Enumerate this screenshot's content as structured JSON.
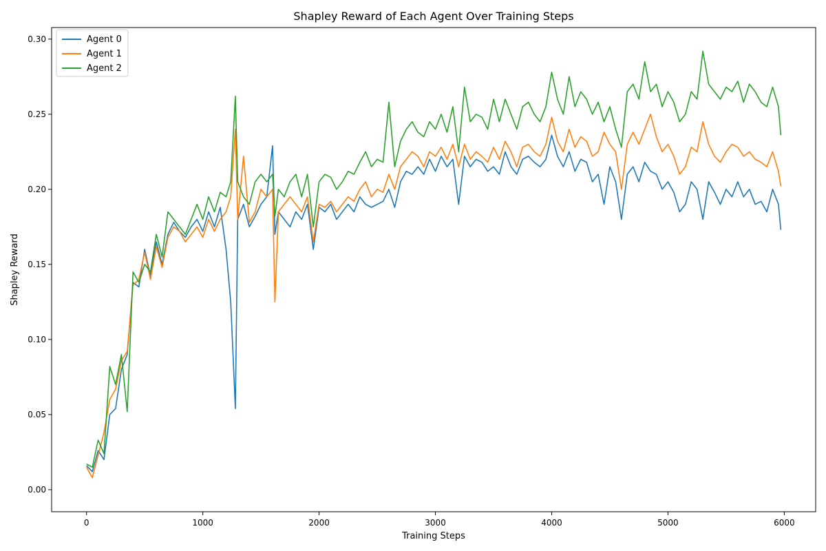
{
  "chart_data": {
    "type": "line",
    "title": "Shapley Reward of Each Agent Over Training Steps",
    "xlabel": "Training Steps",
    "ylabel": "Shapley Reward",
    "xlim": [
      -300,
      6270
    ],
    "ylim": [
      -0.0147,
      0.3077
    ],
    "xticks": [
      0,
      1000,
      2000,
      3000,
      4000,
      5000,
      6000
    ],
    "yticks": [
      0.0,
      0.05,
      0.1,
      0.15,
      0.2,
      0.25,
      0.3
    ],
    "ytick_labels": [
      "0.00",
      "0.05",
      "0.10",
      "0.15",
      "0.20",
      "0.25",
      "0.30"
    ],
    "grid": false,
    "legend": "top-left",
    "x": [
      0,
      50,
      100,
      150,
      200,
      250,
      300,
      350,
      400,
      450,
      500,
      550,
      600,
      650,
      700,
      750,
      800,
      850,
      900,
      950,
      1000,
      1050,
      1100,
      1150,
      1200,
      1240,
      1280,
      1300,
      1350,
      1400,
      1450,
      1500,
      1550,
      1600,
      1620,
      1650,
      1700,
      1750,
      1800,
      1850,
      1900,
      1950,
      2000,
      2050,
      2100,
      2150,
      2200,
      2250,
      2300,
      2350,
      2400,
      2450,
      2500,
      2550,
      2600,
      2650,
      2700,
      2750,
      2800,
      2850,
      2900,
      2950,
      3000,
      3050,
      3100,
      3150,
      3200,
      3250,
      3300,
      3350,
      3400,
      3450,
      3500,
      3550,
      3600,
      3650,
      3700,
      3750,
      3800,
      3850,
      3900,
      3950,
      4000,
      4050,
      4100,
      4150,
      4200,
      4250,
      4300,
      4350,
      4400,
      4450,
      4500,
      4550,
      4600,
      4650,
      4700,
      4750,
      4800,
      4850,
      4900,
      4950,
      5000,
      5050,
      5100,
      5150,
      5200,
      5250,
      5300,
      5350,
      5400,
      5450,
      5500,
      5550,
      5600,
      5650,
      5700,
      5750,
      5800,
      5850,
      5900,
      5950,
      5970
    ],
    "series": [
      {
        "name": "Agent 0",
        "color": "#1f77b4",
        "values": [
          0.016,
          0.012,
          0.026,
          0.02,
          0.05,
          0.054,
          0.08,
          0.09,
          0.138,
          0.135,
          0.16,
          0.142,
          0.165,
          0.15,
          0.17,
          0.178,
          0.172,
          0.168,
          0.175,
          0.18,
          0.172,
          0.185,
          0.175,
          0.188,
          0.16,
          0.125,
          0.054,
          0.18,
          0.19,
          0.175,
          0.182,
          0.19,
          0.195,
          0.229,
          0.17,
          0.185,
          0.18,
          0.175,
          0.185,
          0.18,
          0.19,
          0.16,
          0.188,
          0.185,
          0.19,
          0.18,
          0.185,
          0.19,
          0.185,
          0.195,
          0.19,
          0.188,
          0.19,
          0.192,
          0.2,
          0.188,
          0.205,
          0.212,
          0.21,
          0.215,
          0.21,
          0.22,
          0.212,
          0.222,
          0.215,
          0.22,
          0.19,
          0.222,
          0.215,
          0.22,
          0.218,
          0.212,
          0.215,
          0.21,
          0.225,
          0.215,
          0.21,
          0.22,
          0.222,
          0.218,
          0.215,
          0.22,
          0.236,
          0.222,
          0.215,
          0.225,
          0.212,
          0.22,
          0.218,
          0.205,
          0.21,
          0.19,
          0.215,
          0.205,
          0.18,
          0.21,
          0.215,
          0.205,
          0.218,
          0.212,
          0.21,
          0.2,
          0.205,
          0.198,
          0.185,
          0.19,
          0.205,
          0.2,
          0.18,
          0.205,
          0.198,
          0.19,
          0.2,
          0.195,
          0.205,
          0.195,
          0.2,
          0.19,
          0.192,
          0.185,
          0.2,
          0.19,
          0.173
        ]
      },
      {
        "name": "Agent 1",
        "color": "#ff7f0e",
        "values": [
          0.015,
          0.008,
          0.023,
          0.038,
          0.06,
          0.067,
          0.086,
          0.092,
          0.136,
          0.14,
          0.158,
          0.14,
          0.162,
          0.148,
          0.168,
          0.175,
          0.172,
          0.165,
          0.17,
          0.175,
          0.168,
          0.18,
          0.172,
          0.18,
          0.185,
          0.195,
          0.24,
          0.18,
          0.222,
          0.178,
          0.185,
          0.2,
          0.195,
          0.2,
          0.125,
          0.185,
          0.19,
          0.195,
          0.19,
          0.185,
          0.195,
          0.165,
          0.19,
          0.188,
          0.192,
          0.185,
          0.19,
          0.195,
          0.192,
          0.2,
          0.205,
          0.195,
          0.2,
          0.198,
          0.21,
          0.2,
          0.215,
          0.22,
          0.225,
          0.222,
          0.215,
          0.225,
          0.222,
          0.228,
          0.22,
          0.23,
          0.215,
          0.23,
          0.22,
          0.225,
          0.222,
          0.218,
          0.228,
          0.22,
          0.232,
          0.225,
          0.215,
          0.228,
          0.23,
          0.225,
          0.222,
          0.23,
          0.248,
          0.232,
          0.225,
          0.24,
          0.228,
          0.235,
          0.232,
          0.222,
          0.225,
          0.238,
          0.23,
          0.225,
          0.2,
          0.23,
          0.238,
          0.23,
          0.24,
          0.25,
          0.235,
          0.225,
          0.23,
          0.222,
          0.21,
          0.215,
          0.228,
          0.225,
          0.245,
          0.23,
          0.222,
          0.218,
          0.225,
          0.23,
          0.228,
          0.222,
          0.225,
          0.22,
          0.218,
          0.215,
          0.225,
          0.212,
          0.202
        ]
      },
      {
        "name": "Agent 2",
        "color": "#2ca02c",
        "values": [
          0.017,
          0.015,
          0.033,
          0.024,
          0.082,
          0.07,
          0.09,
          0.052,
          0.145,
          0.138,
          0.15,
          0.145,
          0.17,
          0.155,
          0.185,
          0.18,
          0.175,
          0.17,
          0.18,
          0.19,
          0.18,
          0.195,
          0.185,
          0.198,
          0.195,
          0.205,
          0.262,
          0.205,
          0.195,
          0.19,
          0.205,
          0.21,
          0.205,
          0.21,
          0.182,
          0.2,
          0.195,
          0.205,
          0.21,
          0.195,
          0.21,
          0.175,
          0.205,
          0.21,
          0.208,
          0.2,
          0.205,
          0.212,
          0.21,
          0.218,
          0.225,
          0.215,
          0.22,
          0.218,
          0.258,
          0.215,
          0.232,
          0.24,
          0.245,
          0.238,
          0.235,
          0.245,
          0.24,
          0.25,
          0.238,
          0.255,
          0.225,
          0.268,
          0.245,
          0.25,
          0.248,
          0.24,
          0.26,
          0.245,
          0.26,
          0.25,
          0.24,
          0.255,
          0.258,
          0.25,
          0.245,
          0.255,
          0.278,
          0.26,
          0.25,
          0.275,
          0.255,
          0.265,
          0.26,
          0.25,
          0.258,
          0.245,
          0.255,
          0.24,
          0.228,
          0.265,
          0.27,
          0.26,
          0.285,
          0.265,
          0.27,
          0.255,
          0.265,
          0.258,
          0.245,
          0.25,
          0.265,
          0.26,
          0.292,
          0.27,
          0.265,
          0.26,
          0.268,
          0.265,
          0.272,
          0.258,
          0.27,
          0.265,
          0.258,
          0.255,
          0.268,
          0.255,
          0.236
        ]
      }
    ]
  }
}
